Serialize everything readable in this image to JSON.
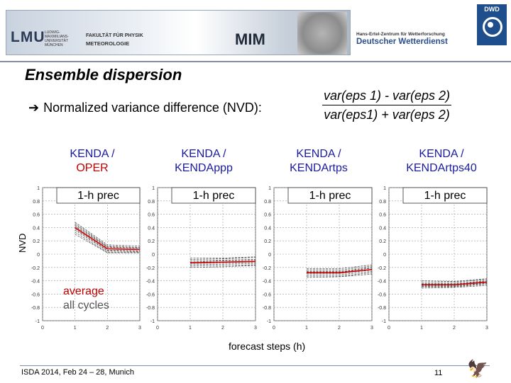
{
  "header": {
    "lmu_logo": "LMU",
    "lmu_text": [
      "LUDWIG-",
      "MAXIMILIANS-",
      "UNIVERSITÄT",
      "MÜNCHEN"
    ],
    "faculty": "FAKULTÄT FÜR PHYSIK",
    "department": "METEOROLOGIE",
    "mim_logo": "MIM",
    "dwd_line1": "Hans-Ertel-Zentrum für Wetterforschung",
    "dwd_line2": "Deutscher Wetterdienst",
    "dwd_logo": "DWD"
  },
  "slide": {
    "title": "Ensemble dispersion",
    "bullet_text": "Normalized variance difference (NVD):",
    "formula_numerator": "var(eps 1) - var(eps 2)",
    "formula_denominator": "var(eps1) + var(eps 2)",
    "experiments": [
      {
        "line1": "KENDA /",
        "line2": "OPER"
      },
      {
        "line1": "KENDA /",
        "line2": "KENDAppp"
      },
      {
        "line1": "KENDA /",
        "line2": "KENDArtps"
      },
      {
        "line1": "KENDA /",
        "line2": "KENDArtps40"
      }
    ],
    "ylabel": "NVD",
    "xlabel": "forecast steps (h)",
    "annotation_line1": "average",
    "annotation_line2": "all cycles"
  },
  "footer": {
    "left": "ISDA 2014, Feb 24 – 28, Munich",
    "page": "11"
  },
  "colors": {
    "mean_line": "#d40000",
    "member_line": "#555555",
    "header_rule": "#7f8fa6",
    "blue_text": "#1a1aa0",
    "red_text": "#c00000"
  },
  "chart_data": [
    {
      "type": "line",
      "legend_box": "1-h prec",
      "xlim": [
        0,
        3
      ],
      "ylim": [
        -1,
        1
      ],
      "x_ticks": [
        "0",
        "1",
        "2",
        "3"
      ],
      "y_ticks": [
        "1",
        "0.8",
        "0.6",
        "0.4",
        "0.2",
        "0",
        "-0.2",
        "-0.4",
        "-0.6",
        "-0.8",
        "-1"
      ],
      "x": [
        1,
        2,
        3
      ],
      "mean": [
        0.4,
        0.08,
        0.07
      ],
      "members": [
        [
          0.46,
          0.12,
          0.1
        ],
        [
          0.44,
          0.11,
          0.09
        ],
        [
          0.42,
          0.1,
          0.09
        ],
        [
          0.38,
          0.06,
          0.05
        ],
        [
          0.36,
          0.05,
          0.04
        ],
        [
          0.33,
          0.03,
          0.03
        ],
        [
          0.3,
          0.02,
          0.02
        ],
        [
          0.48,
          0.14,
          0.12
        ]
      ]
    },
    {
      "type": "line",
      "legend_box": "1-h prec",
      "xlim": [
        0,
        3
      ],
      "ylim": [
        -1,
        1
      ],
      "x_ticks": [
        "0",
        "1",
        "2",
        "3"
      ],
      "y_ticks": [
        "1",
        "0.8",
        "0.6",
        "0.4",
        "0.2",
        "0",
        "-0.2",
        "-0.4",
        "-0.6",
        "-0.8",
        "-1"
      ],
      "x": [
        1,
        2,
        3
      ],
      "mean": [
        -0.13,
        -0.12,
        -0.11
      ],
      "members": [
        [
          -0.08,
          -0.07,
          -0.05
        ],
        [
          -0.1,
          -0.09,
          -0.08
        ],
        [
          -0.12,
          -0.1,
          -0.09
        ],
        [
          -0.14,
          -0.13,
          -0.12
        ],
        [
          -0.16,
          -0.15,
          -0.14
        ],
        [
          -0.18,
          -0.17,
          -0.16
        ],
        [
          -0.06,
          -0.06,
          -0.04
        ],
        [
          -0.2,
          -0.19,
          -0.17
        ]
      ]
    },
    {
      "type": "line",
      "legend_box": "1-h prec",
      "xlim": [
        0,
        3
      ],
      "ylim": [
        -1,
        1
      ],
      "x_ticks": [
        "0",
        "1",
        "2",
        "3"
      ],
      "y_ticks": [
        "1",
        "0.8",
        "0.6",
        "0.4",
        "0.2",
        "0",
        "-0.2",
        "-0.4",
        "-0.6",
        "-0.8",
        "-1"
      ],
      "x": [
        1,
        2,
        3
      ],
      "mean": [
        -0.28,
        -0.28,
        -0.23
      ],
      "members": [
        [
          -0.24,
          -0.24,
          -0.18
        ],
        [
          -0.26,
          -0.26,
          -0.2
        ],
        [
          -0.29,
          -0.29,
          -0.24
        ],
        [
          -0.31,
          -0.31,
          -0.26
        ],
        [
          -0.33,
          -0.33,
          -0.28
        ],
        [
          -0.22,
          -0.22,
          -0.16
        ],
        [
          -0.35,
          -0.34,
          -0.3
        ],
        [
          -0.27,
          -0.27,
          -0.21
        ]
      ]
    },
    {
      "type": "line",
      "legend_box": "1-h prec",
      "xlim": [
        0,
        3
      ],
      "ylim": [
        -1,
        1
      ],
      "x_ticks": [
        "0",
        "1",
        "2",
        "3"
      ],
      "y_ticks": [
        "1",
        "0.8",
        "0.6",
        "0.4",
        "0.2",
        "0",
        "-0.2",
        "-0.4",
        "-0.6",
        "-0.8",
        "-1"
      ],
      "x": [
        1,
        2,
        3
      ],
      "mean": [
        -0.46,
        -0.46,
        -0.42
      ],
      "members": [
        [
          -0.42,
          -0.42,
          -0.38
        ],
        [
          -0.44,
          -0.44,
          -0.4
        ],
        [
          -0.47,
          -0.47,
          -0.43
        ],
        [
          -0.49,
          -0.49,
          -0.45
        ],
        [
          -0.51,
          -0.5,
          -0.47
        ],
        [
          -0.4,
          -0.41,
          -0.37
        ],
        [
          -0.45,
          -0.45,
          -0.41
        ],
        [
          -0.48,
          -0.48,
          -0.44
        ]
      ]
    }
  ]
}
